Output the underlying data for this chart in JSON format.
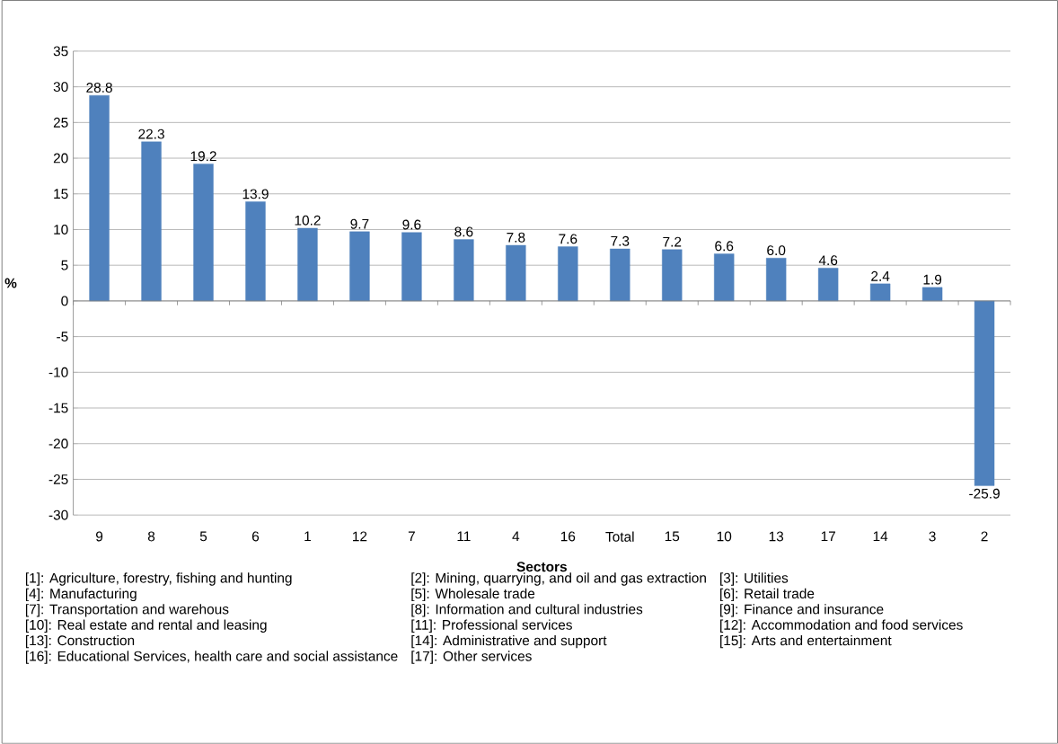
{
  "chart_data": {
    "type": "bar",
    "xlabel": "Sectors",
    "ylabel": "%",
    "categories": [
      "9",
      "8",
      "5",
      "6",
      "1",
      "12",
      "7",
      "11",
      "4",
      "16",
      "Total",
      "15",
      "10",
      "13",
      "17",
      "14",
      "3",
      "2"
    ],
    "values": [
      28.8,
      22.3,
      19.2,
      13.9,
      10.2,
      9.7,
      9.6,
      8.6,
      7.8,
      7.6,
      7.3,
      7.2,
      6.6,
      6.0,
      4.6,
      2.4,
      1.9,
      -25.9
    ],
    "value_labels": [
      "28.8",
      "22.3",
      "19.2",
      "13.9",
      "10.2",
      "9.7",
      "9.6",
      "8.6",
      "7.8",
      "7.6",
      "7.3",
      "7.2",
      "6.6",
      "6.0",
      "4.6",
      "2.4",
      "1.9",
      "-25.9"
    ],
    "color": "#4f81bd",
    "ylim": [
      -30,
      35
    ],
    "yticks": [
      -30,
      -25,
      -20,
      -15,
      -10,
      -5,
      0,
      5,
      10,
      15,
      20,
      25,
      30,
      35
    ],
    "grid": "y",
    "annotations": [
      "[1]: Agriculture, forestry, fishing and hunting",
      "[2]: Mining, quarrying, and oil and gas extraction",
      "[3]: Utilities",
      "[4]: Manufacturing",
      "[5]: Wholesale trade",
      "[6]: Retail trade",
      "[7]: Transportation and warehous",
      "[8]: Information and cultural industries",
      "[9]: Finance and insurance",
      "[10]: Real estate and rental and leasing",
      "[11]: Professional  services",
      "[12]: Accommodation and food services",
      "[13]: Construction",
      "[14]: Administrative and support",
      "[15]: Arts and entertainment",
      "[16]: Educational Services, health care and social assistance",
      "[17]: Other services"
    ]
  }
}
